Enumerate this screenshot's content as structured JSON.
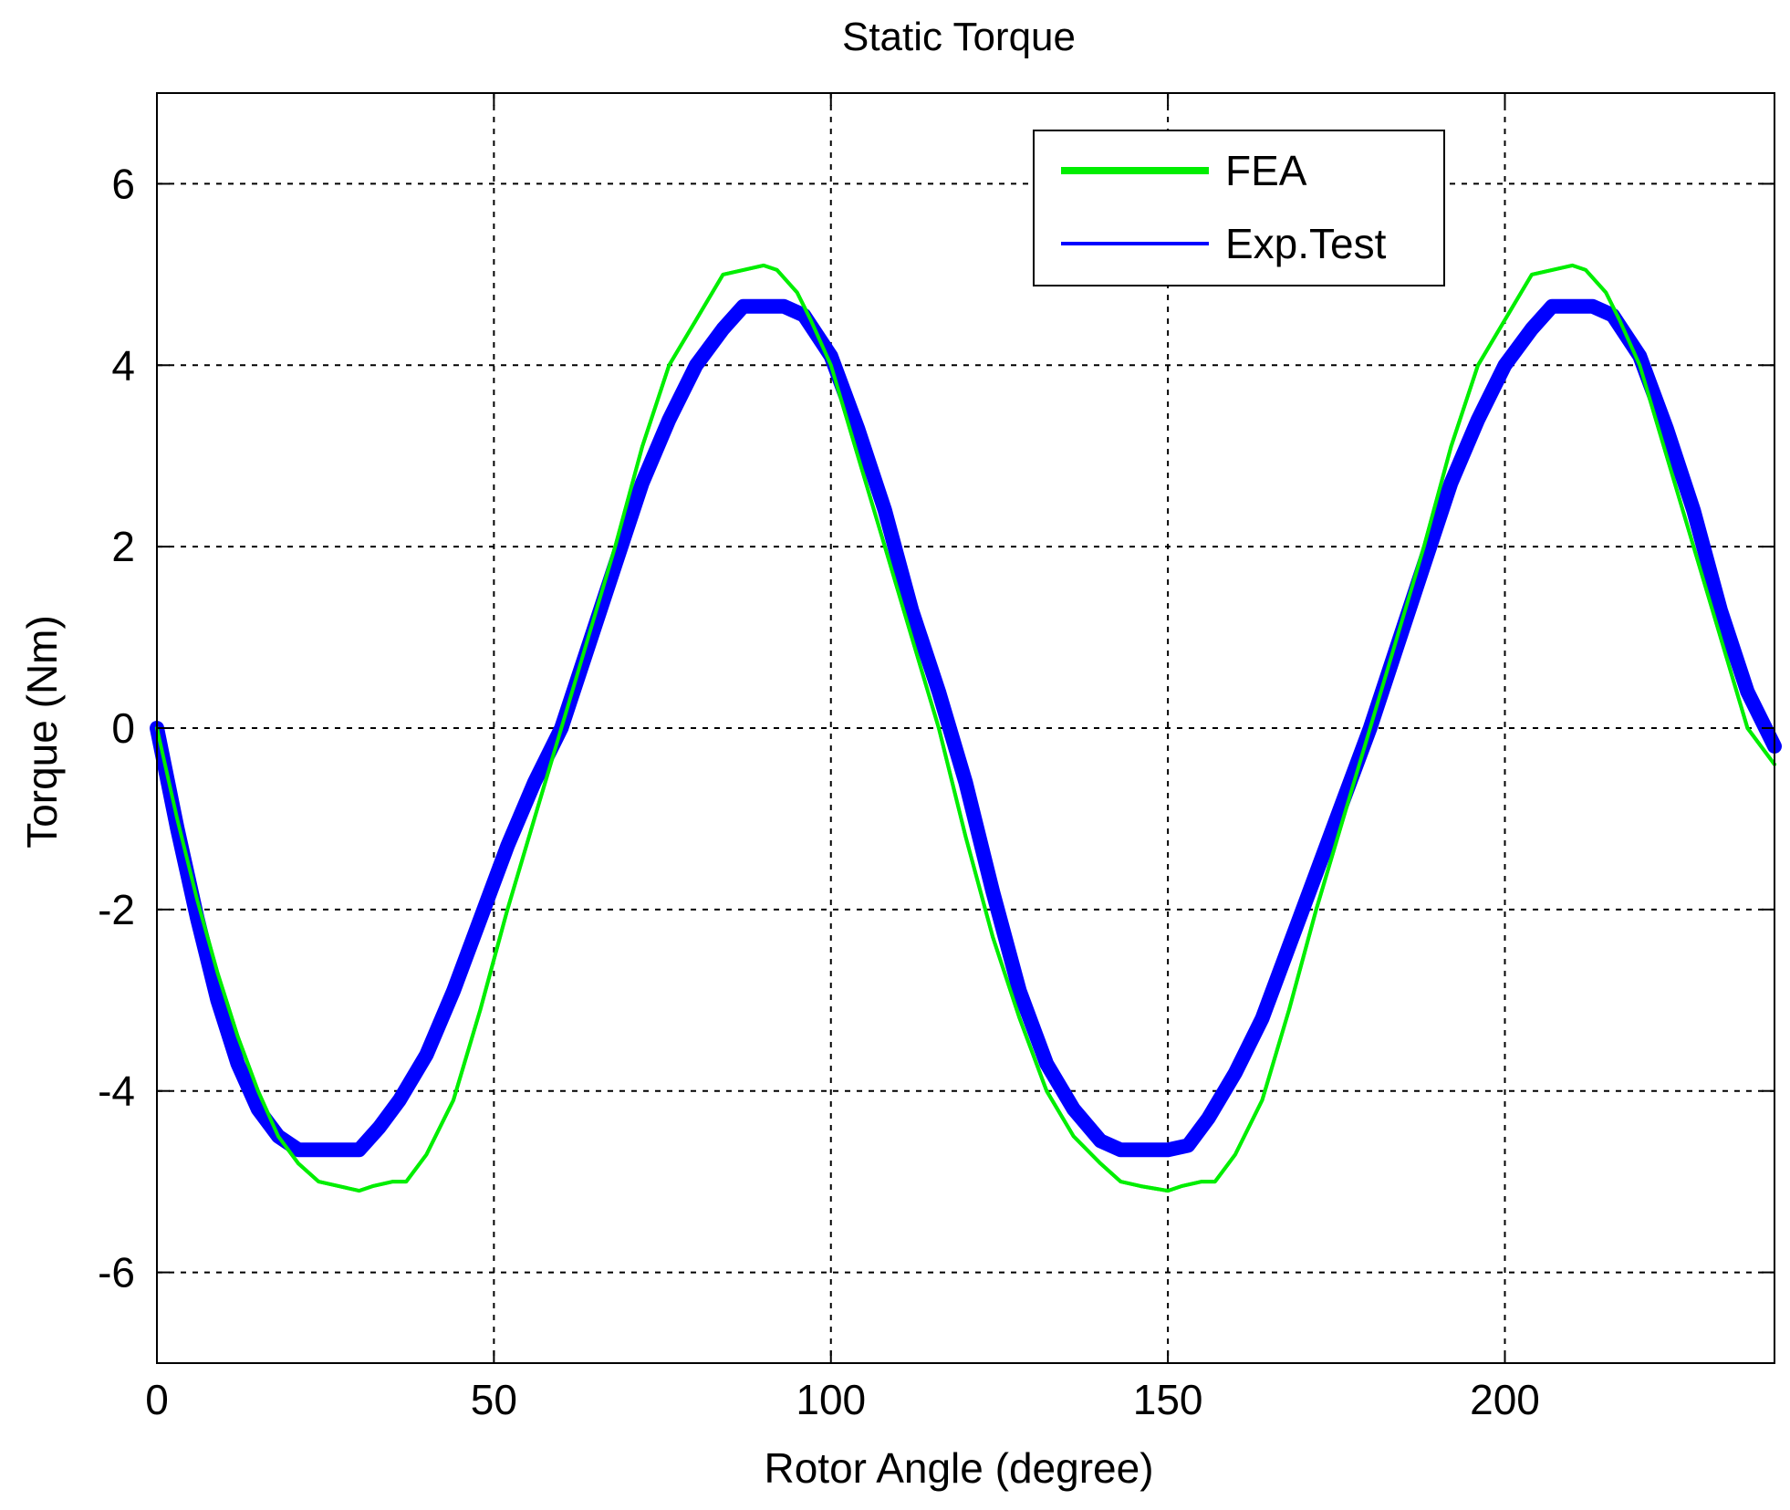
{
  "chart_data": {
    "type": "line",
    "title": "Static Torque",
    "xlabel": "Rotor Angle (degree)",
    "ylabel": "Torque (Nm)",
    "xlim": [
      0,
      240
    ],
    "ylim": [
      -7,
      7
    ],
    "xticks": [
      0,
      50,
      100,
      150,
      200
    ],
    "yticks": [
      -6,
      -4,
      -2,
      0,
      2,
      4,
      6
    ],
    "grid": true,
    "legend_position": "top-right",
    "series": [
      {
        "name": "FEA",
        "color": "#00ee00",
        "x": [
          0,
          3,
          6,
          9,
          12,
          15,
          18,
          21,
          24,
          27,
          30,
          32,
          35,
          37,
          40,
          44,
          48,
          52,
          56,
          60,
          64,
          68,
          72,
          76,
          80,
          84,
          87,
          90,
          92,
          95,
          97,
          100,
          104,
          108,
          112,
          116,
          120,
          124,
          128,
          132,
          136,
          140,
          143,
          146,
          150,
          152,
          155,
          157,
          160,
          164,
          168,
          172,
          176,
          180,
          184,
          188,
          192,
          196,
          200,
          204,
          207,
          210,
          212,
          215,
          217,
          220,
          224,
          228,
          232,
          236,
          240
        ],
        "y": [
          0,
          -1.0,
          -1.9,
          -2.7,
          -3.4,
          -4.0,
          -4.5,
          -4.8,
          -5.0,
          -5.05,
          -5.1,
          -5.05,
          -5.0,
          -5.0,
          -4.7,
          -4.1,
          -3.1,
          -2.0,
          -1.0,
          0,
          1.0,
          2.0,
          3.1,
          4.0,
          4.5,
          5.0,
          5.05,
          5.1,
          5.05,
          4.8,
          4.5,
          4.0,
          3.0,
          2.0,
          1.0,
          0,
          -1.2,
          -2.3,
          -3.2,
          -4.0,
          -4.5,
          -4.8,
          -5.0,
          -5.05,
          -5.1,
          -5.05,
          -5.0,
          -5.0,
          -4.7,
          -4.1,
          -3.1,
          -2.0,
          -1.0,
          0,
          1.0,
          2.0,
          3.1,
          4.0,
          4.5,
          5.0,
          5.05,
          5.1,
          5.05,
          4.8,
          4.5,
          4.0,
          3.0,
          2.0,
          1.0,
          0,
          -0.4
        ]
      },
      {
        "name": "Exp.Test",
        "color": "#0000ff",
        "x": [
          0,
          3,
          6,
          9,
          12,
          15,
          18,
          21,
          24,
          27,
          30,
          33,
          36,
          40,
          44,
          48,
          52,
          56,
          60,
          64,
          68,
          72,
          76,
          80,
          84,
          87,
          90,
          93,
          96,
          100,
          104,
          108,
          112,
          116,
          120,
          124,
          128,
          132,
          136,
          140,
          143,
          146,
          150,
          153,
          156,
          160,
          164,
          168,
          172,
          176,
          180,
          184,
          188,
          192,
          196,
          200,
          204,
          207,
          210,
          213,
          216,
          220,
          224,
          228,
          232,
          236,
          240
        ],
        "y": [
          0,
          -1.1,
          -2.1,
          -3.0,
          -3.7,
          -4.2,
          -4.5,
          -4.65,
          -4.65,
          -4.65,
          -4.65,
          -4.4,
          -4.1,
          -3.6,
          -2.9,
          -2.1,
          -1.3,
          -0.6,
          0,
          0.9,
          1.8,
          2.7,
          3.4,
          4.0,
          4.4,
          4.65,
          4.65,
          4.65,
          4.55,
          4.1,
          3.3,
          2.4,
          1.3,
          0.4,
          -0.6,
          -1.8,
          -2.9,
          -3.7,
          -4.2,
          -4.55,
          -4.65,
          -4.65,
          -4.65,
          -4.6,
          -4.3,
          -3.8,
          -3.2,
          -2.4,
          -1.6,
          -0.8,
          0,
          0.9,
          1.8,
          2.7,
          3.4,
          4.0,
          4.4,
          4.65,
          4.65,
          4.65,
          4.55,
          4.1,
          3.3,
          2.4,
          1.3,
          0.4,
          -0.2
        ]
      }
    ]
  }
}
